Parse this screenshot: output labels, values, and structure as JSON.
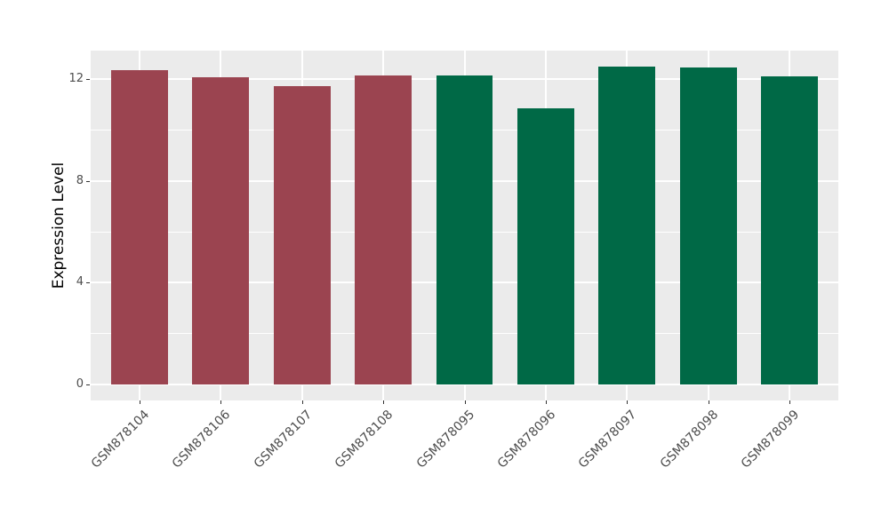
{
  "chart_data": {
    "type": "bar",
    "title": "",
    "xlabel": "",
    "ylabel": "Expression Level",
    "categories": [
      "GSM878104",
      "GSM878106",
      "GSM878107",
      "GSM878108",
      "GSM878095",
      "GSM878096",
      "GSM878097",
      "GSM878098",
      "GSM878099"
    ],
    "values": [
      12.33,
      12.08,
      11.7,
      12.13,
      12.14,
      10.84,
      12.48,
      12.44,
      12.11
    ],
    "bar_colors": [
      "#9B4450",
      "#9B4450",
      "#9B4450",
      "#9B4450",
      "#006946",
      "#006946",
      "#006946",
      "#006946",
      "#006946"
    ],
    "yticks": [
      0,
      4,
      8,
      12
    ],
    "minor_yticks": [
      2,
      6,
      10
    ],
    "ylim": [
      -0.62,
      13.11
    ],
    "bar_rel_width": 0.7,
    "x_label_angle_deg": 45,
    "grid": true,
    "legend_position": "none",
    "panel_bg": "#EBEBEB",
    "grid_color": "#FFFFFF",
    "axis_text_color": "#4D4D4D",
    "tick_color": "#333333"
  }
}
